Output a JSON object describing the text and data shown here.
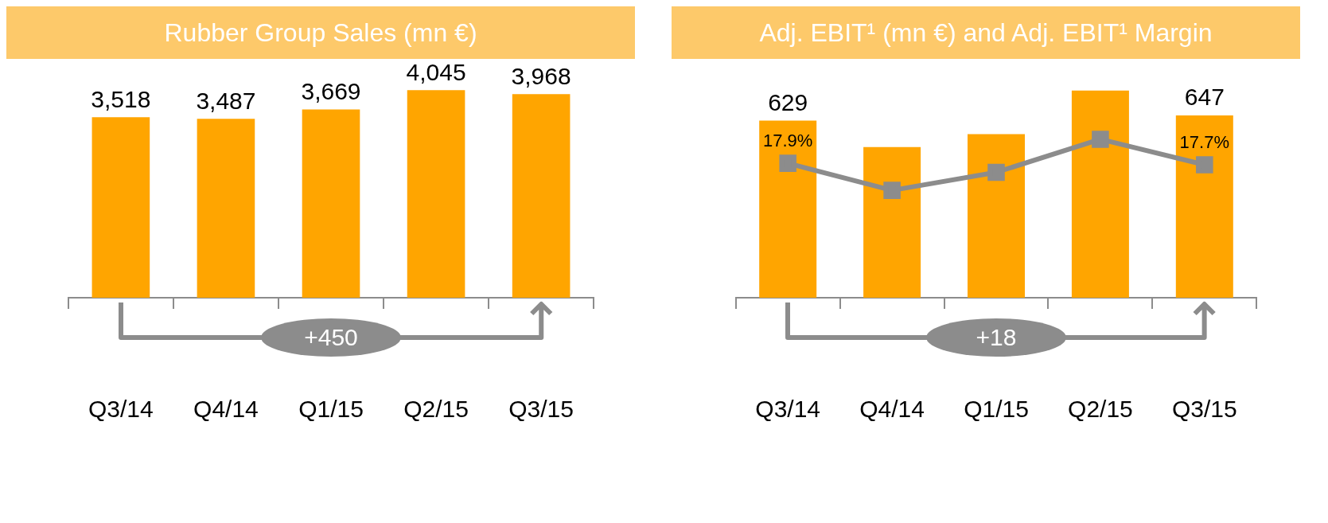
{
  "chart_data": [
    {
      "type": "bar",
      "title": "Rubber Group Sales (mn €)",
      "categories": [
        "Q3/14",
        "Q4/14",
        "Q1/15",
        "Q2/15",
        "Q3/15"
      ],
      "values": [
        3518,
        3487,
        3669,
        4045,
        3968
      ],
      "value_labels": [
        "3,518",
        "3,487",
        "3,669",
        "4,045",
        "3,968"
      ],
      "color": "#ffa500",
      "tick_labels": "x",
      "annotations": [
        "+450"
      ]
    },
    {
      "type": "bar",
      "title": "Adj. EBIT¹ (mn €) and Adj. EBIT¹ Margin",
      "categories": [
        "Q3/14",
        "Q4/14",
        "Q1/15",
        "Q2/15",
        "Q3/15"
      ],
      "series": [
        {
          "type": "bar",
          "color": "#ffa500",
          "values": [
            629,
            535,
            581,
            736,
            647
          ],
          "value_labels": [
            "629",
            null,
            null,
            null,
            "647"
          ]
        },
        {
          "type": "line",
          "axis": "y2",
          "color": "#8c8c8c",
          "values": [
            17.9,
            14.3,
            16.7,
            21.1,
            17.7
          ],
          "value_labels": [
            "17.9%",
            null,
            null,
            null,
            "17.7%"
          ]
        }
      ],
      "marker": "square",
      "tick_labels": "x",
      "annotations": [
        "+18"
      ]
    }
  ]
}
